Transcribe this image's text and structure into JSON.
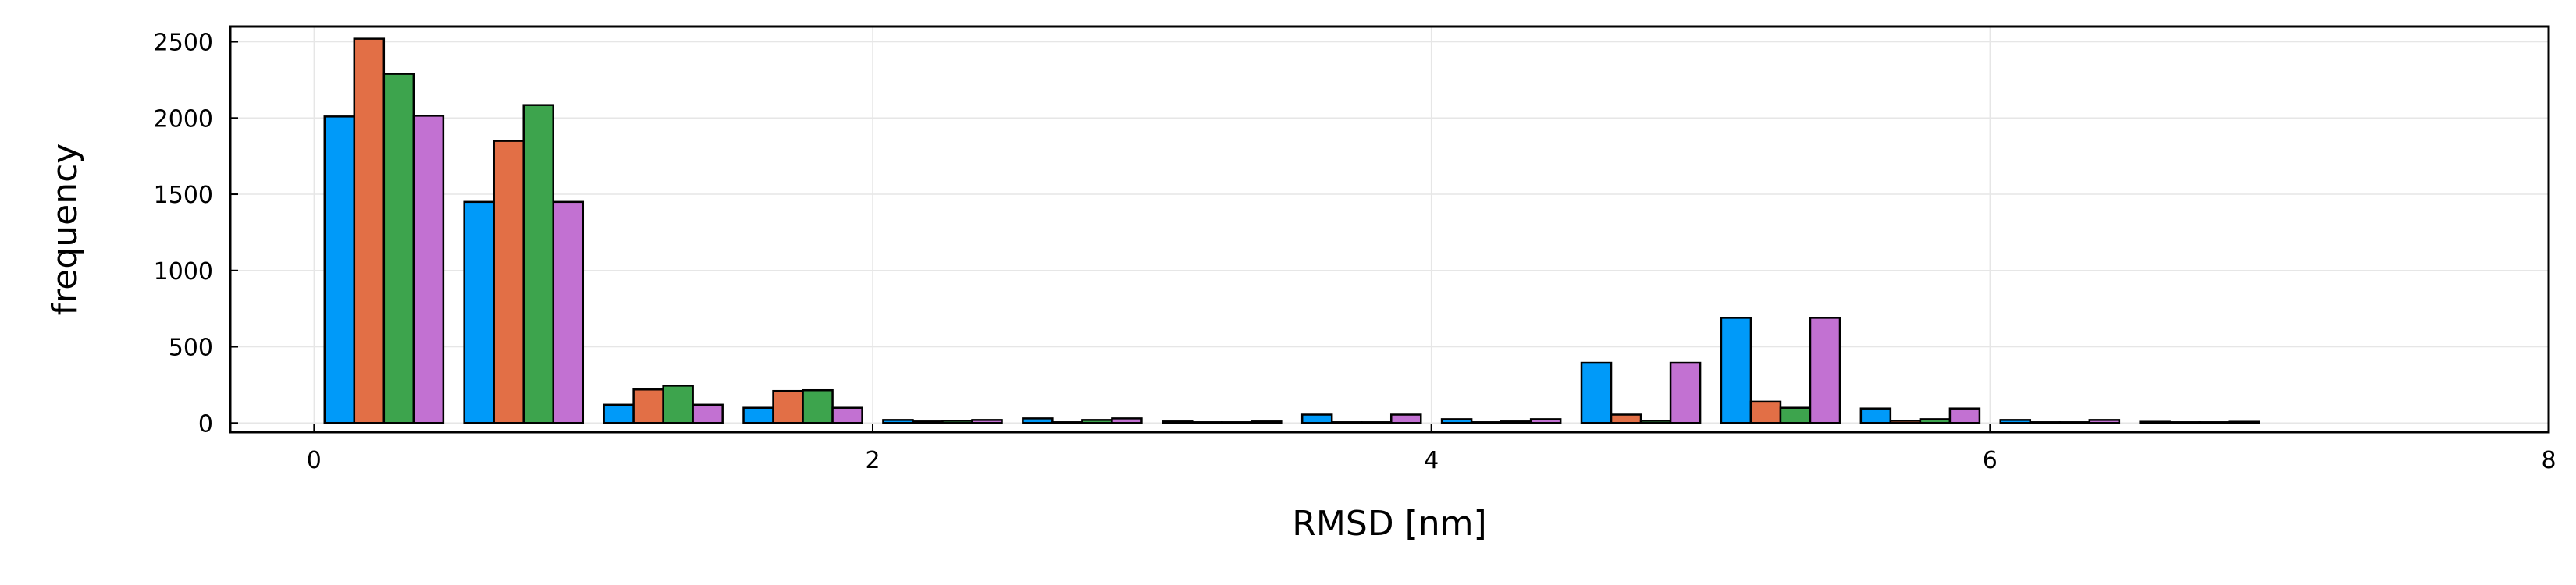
{
  "chart_data": {
    "type": "bar",
    "title": "",
    "xlabel": "RMSD [nm]",
    "ylabel": "frequency",
    "xlim": [
      -0.3,
      8
    ],
    "ylim": [
      -60,
      2600
    ],
    "xticks": [
      0,
      2,
      4,
      6,
      8
    ],
    "yticks": [
      0,
      500,
      1000,
      1500,
      2000,
      2500
    ],
    "grid": true,
    "legend": "none",
    "bin_width": 0.5,
    "bin_starts": [
      0,
      0.5,
      1,
      1.5,
      2,
      2.5,
      3,
      3.5,
      4,
      4.5,
      5,
      5.5,
      6,
      6.5
    ],
    "series": [
      {
        "color": "#009af9",
        "values": [
          2010,
          1450,
          120,
          100,
          20,
          30,
          10,
          55,
          25,
          395,
          690,
          95,
          20,
          8
        ]
      },
      {
        "color": "#e26f46",
        "values": [
          2520,
          1850,
          220,
          210,
          10,
          5,
          5,
          5,
          5,
          55,
          140,
          15,
          5,
          5
        ]
      },
      {
        "color": "#3da44d",
        "values": [
          2290,
          2085,
          245,
          215,
          15,
          20,
          5,
          5,
          10,
          15,
          100,
          25,
          5,
          5
        ]
      },
      {
        "color": "#c271d2",
        "values": [
          2015,
          1450,
          120,
          100,
          20,
          30,
          10,
          55,
          25,
          395,
          690,
          95,
          20,
          8
        ]
      }
    ]
  }
}
